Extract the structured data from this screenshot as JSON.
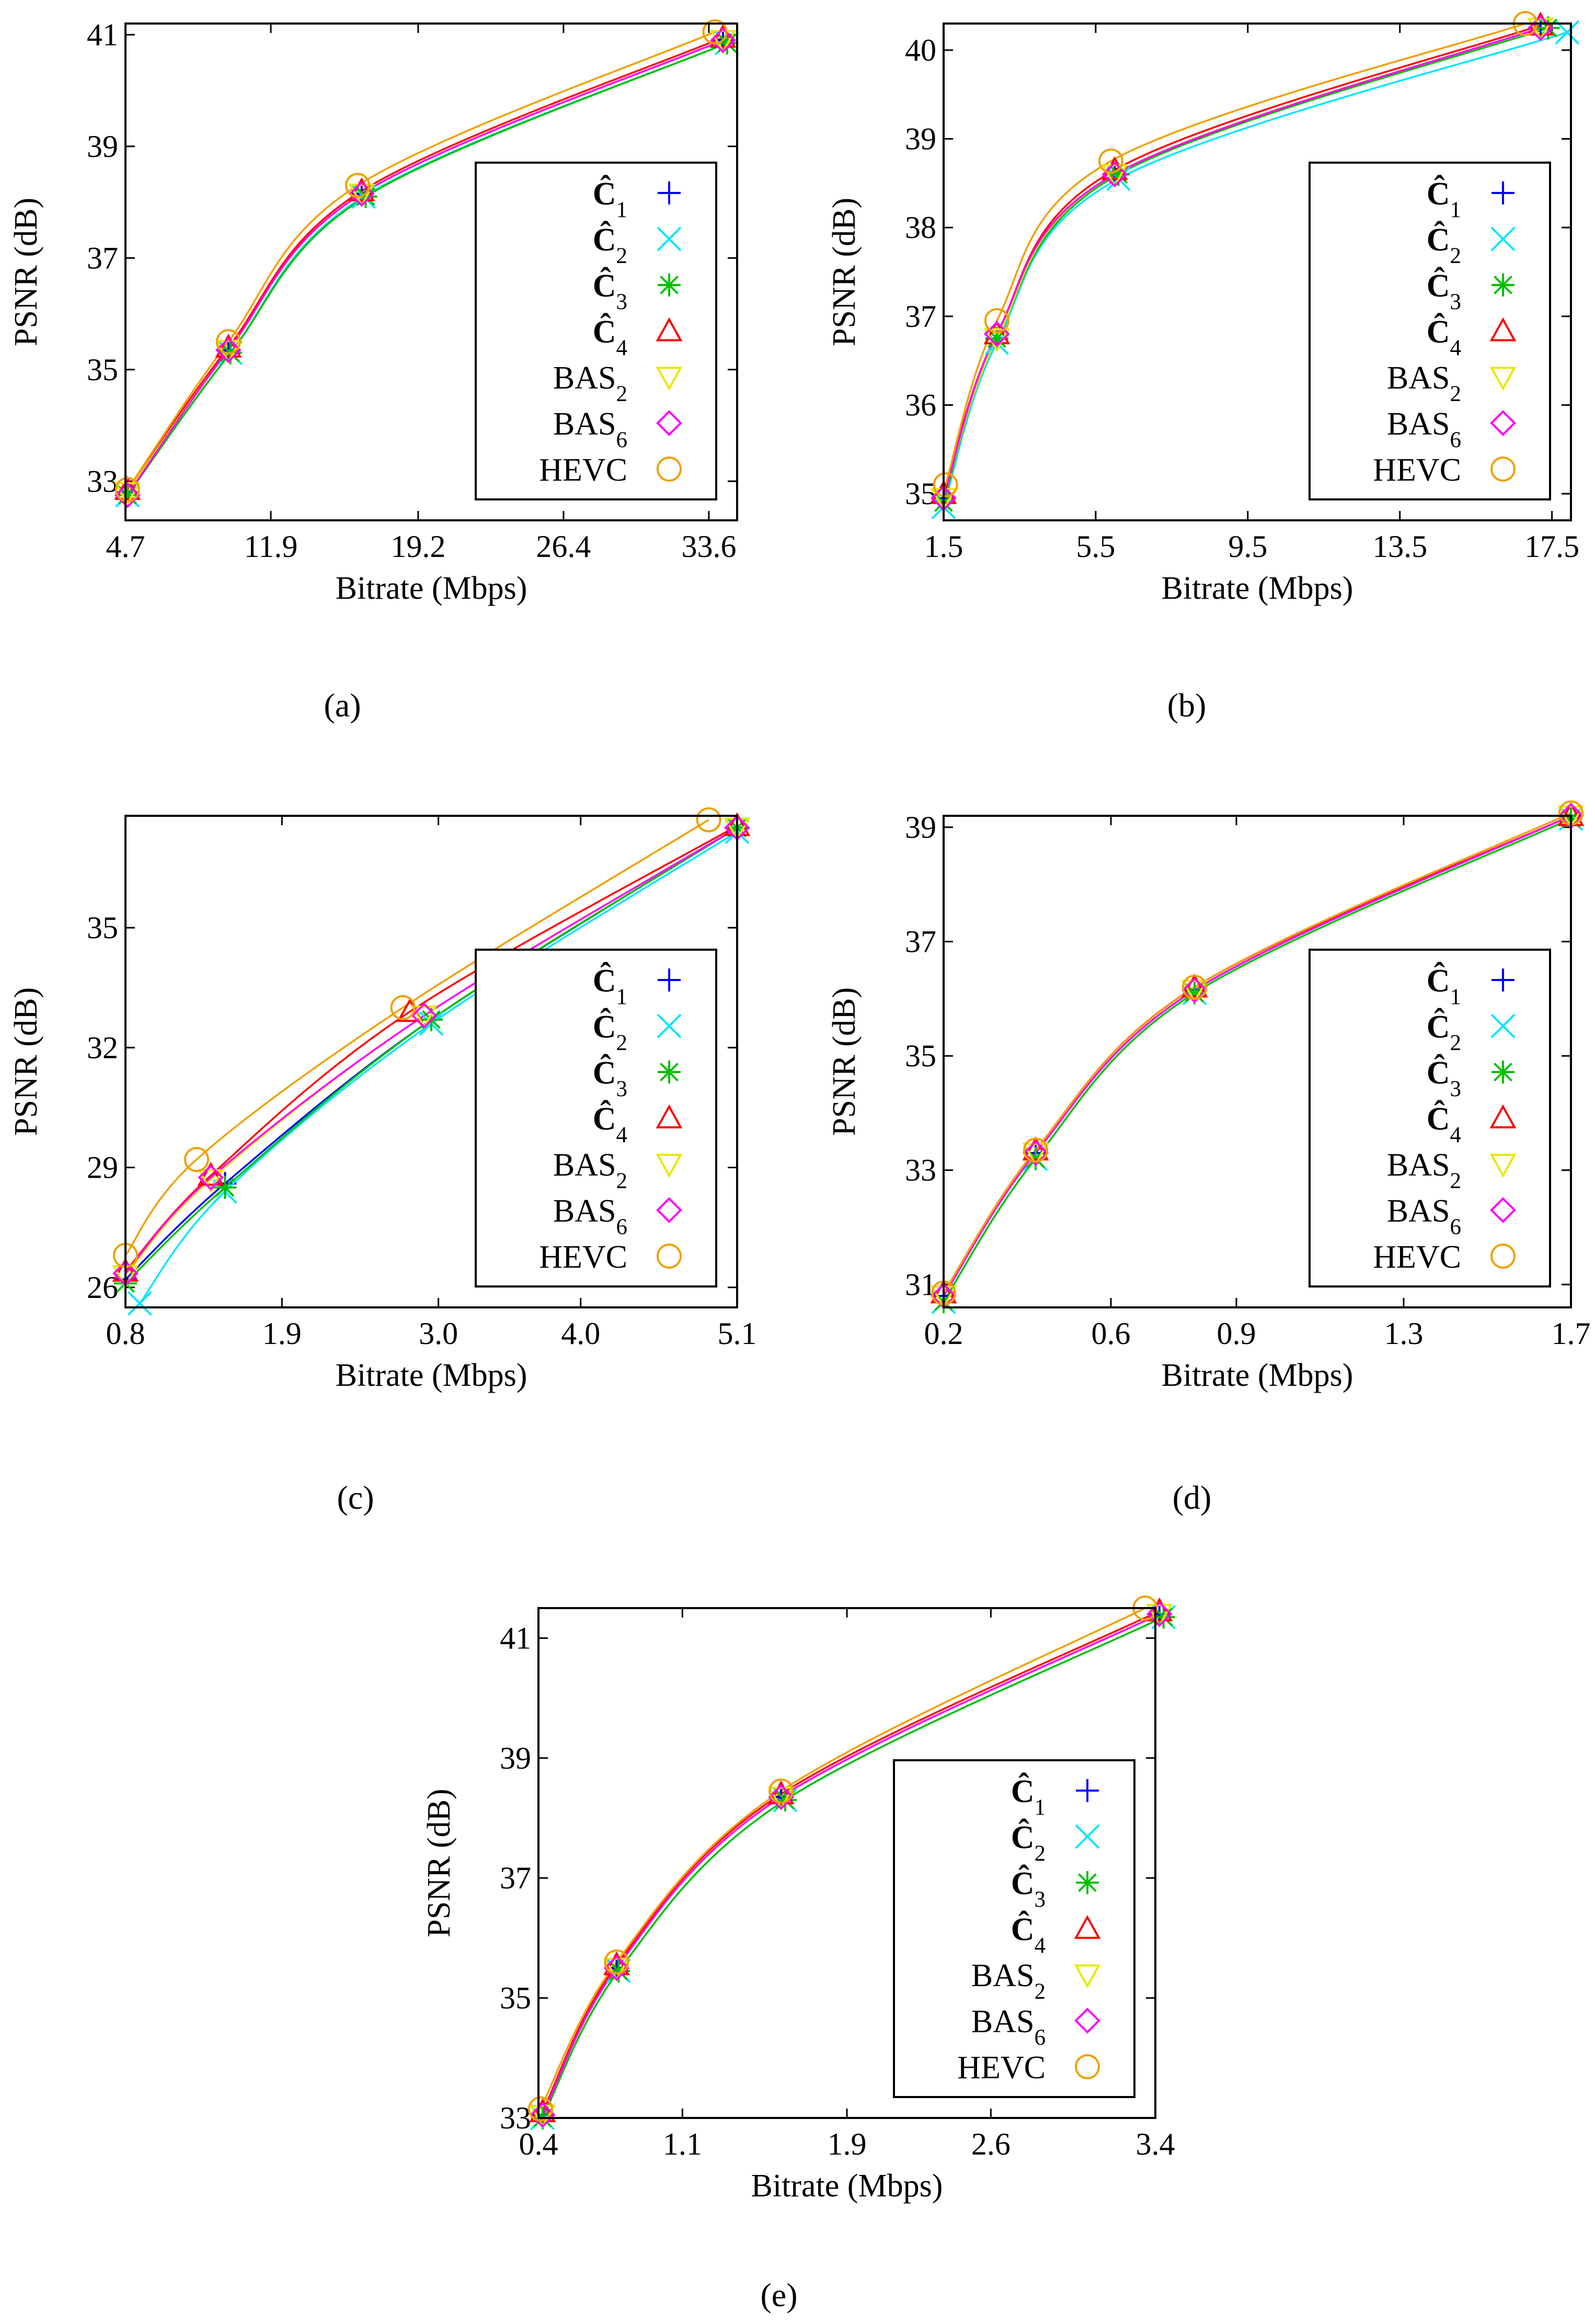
{
  "chart_data": [
    {
      "type": "line",
      "panel_label": "(a)",
      "xlabel": "Bitrate (Mbps)",
      "ylabel": "PSNR (dB)",
      "xlim": [
        4.7,
        35.0
      ],
      "ylim": [
        32.3,
        41.2
      ],
      "xticks": [
        4.7,
        11.9,
        19.2,
        26.4,
        33.6
      ],
      "yticks": [
        33,
        35,
        37,
        39,
        41
      ],
      "legend_position": "bottom-right",
      "series": [
        {
          "name": "Ĉ1",
          "marker": "plus",
          "color": "#0000ff",
          "x": [
            4.8,
            9.8,
            16.4,
            34.3
          ],
          "y": [
            32.8,
            35.35,
            38.15,
            40.9
          ]
        },
        {
          "name": "Ĉ2",
          "marker": "x",
          "color": "#00e5ff",
          "x": [
            4.8,
            9.9,
            16.5,
            34.5
          ],
          "y": [
            32.75,
            35.3,
            38.1,
            40.85
          ]
        },
        {
          "name": "Ĉ3",
          "marker": "star",
          "color": "#00c000",
          "x": [
            4.8,
            9.9,
            16.6,
            34.5
          ],
          "y": [
            32.75,
            35.3,
            38.1,
            40.85
          ]
        },
        {
          "name": "Ĉ4",
          "marker": "triangle-up",
          "color": "#ff0000",
          "x": [
            4.8,
            9.8,
            16.4,
            34.3
          ],
          "y": [
            32.85,
            35.4,
            38.2,
            40.95
          ]
        },
        {
          "name": "BAS2",
          "marker": "triangle-down",
          "color": "#e8e800",
          "x": [
            4.8,
            9.8,
            16.4,
            34.3
          ],
          "y": [
            32.8,
            35.35,
            38.15,
            40.9
          ]
        },
        {
          "name": "BAS6",
          "marker": "diamond",
          "color": "#ff00ff",
          "x": [
            4.8,
            9.8,
            16.4,
            34.3
          ],
          "y": [
            32.75,
            35.35,
            38.15,
            40.9
          ]
        },
        {
          "name": "HEVC",
          "marker": "circle",
          "color": "#f0a000",
          "x": [
            4.8,
            9.8,
            16.2,
            33.9
          ],
          "y": [
            32.85,
            35.5,
            38.3,
            41.05
          ]
        }
      ]
    },
    {
      "type": "line",
      "panel_label": "(b)",
      "xlabel": "Bitrate (Mbps)",
      "ylabel": "PSNR (dB)",
      "xlim": [
        1.5,
        18.0
      ],
      "ylim": [
        34.7,
        40.3
      ],
      "xticks": [
        1.5,
        5.5,
        9.5,
        13.5,
        17.5
      ],
      "yticks": [
        35,
        36,
        37,
        38,
        39,
        40
      ],
      "legend_position": "bottom-right",
      "series": [
        {
          "name": "Ĉ1",
          "marker": "plus",
          "color": "#0000ff",
          "x": [
            1.5,
            2.9,
            6.0,
            17.2
          ],
          "y": [
            34.95,
            36.75,
            38.6,
            40.25
          ]
        },
        {
          "name": "Ĉ2",
          "marker": "x",
          "color": "#00e5ff",
          "x": [
            1.5,
            2.9,
            6.1,
            17.9
          ],
          "y": [
            34.85,
            36.7,
            38.55,
            40.2
          ]
        },
        {
          "name": "Ĉ3",
          "marker": "star",
          "color": "#00c000",
          "x": [
            1.5,
            2.9,
            6.1,
            17.4
          ],
          "y": [
            34.9,
            36.75,
            38.6,
            40.25
          ]
        },
        {
          "name": "Ĉ4",
          "marker": "triangle-up",
          "color": "#ff0000",
          "x": [
            1.5,
            2.9,
            6.0,
            17.2
          ],
          "y": [
            35.0,
            36.8,
            38.65,
            40.28
          ]
        },
        {
          "name": "BAS2",
          "marker": "triangle-down",
          "color": "#e8e800",
          "x": [
            1.5,
            2.9,
            6.0,
            17.2
          ],
          "y": [
            34.95,
            36.75,
            38.6,
            40.25
          ]
        },
        {
          "name": "BAS6",
          "marker": "diamond",
          "color": "#ff00ff",
          "x": [
            1.5,
            2.9,
            6.0,
            17.2
          ],
          "y": [
            34.95,
            36.8,
            38.6,
            40.25
          ]
        },
        {
          "name": "HEVC",
          "marker": "circle",
          "color": "#f0a000",
          "x": [
            1.55,
            2.9,
            5.9,
            16.8
          ],
          "y": [
            35.1,
            36.95,
            38.75,
            40.3
          ]
        }
      ]
    },
    {
      "type": "line",
      "panel_label": "(c)",
      "xlabel": "Bitrate (Mbps)",
      "ylabel": "PSNR (dB)",
      "xlim": [
        0.8,
        5.1
      ],
      "ylim": [
        25.5,
        37.8
      ],
      "xticks": [
        0.8,
        1.9,
        3.0,
        4.0,
        5.1
      ],
      "yticks": [
        26,
        29,
        32,
        35
      ],
      "legend_position": "bottom-right",
      "series": [
        {
          "name": "Ĉ1",
          "marker": "plus",
          "color": "#0000ff",
          "x": [
            0.8,
            1.5,
            2.95,
            5.1
          ],
          "y": [
            26.2,
            28.6,
            32.7,
            37.5
          ]
        },
        {
          "name": "Ĉ2",
          "marker": "x",
          "color": "#00e5ff",
          "x": [
            0.9,
            1.5,
            2.95,
            5.1
          ],
          "y": [
            25.6,
            28.4,
            32.6,
            37.4
          ]
        },
        {
          "name": "Ĉ3",
          "marker": "star",
          "color": "#00c000",
          "x": [
            0.8,
            1.5,
            2.95,
            5.1
          ],
          "y": [
            26.1,
            28.5,
            32.7,
            37.5
          ]
        },
        {
          "name": "Ĉ4",
          "marker": "triangle-up",
          "color": "#ff0000",
          "x": [
            0.8,
            1.4,
            2.8,
            5.1
          ],
          "y": [
            26.4,
            28.8,
            32.9,
            37.55
          ]
        },
        {
          "name": "BAS2",
          "marker": "triangle-down",
          "color": "#e8e800",
          "x": [
            0.8,
            1.4,
            2.9,
            5.1
          ],
          "y": [
            26.3,
            28.7,
            32.8,
            37.5
          ]
        },
        {
          "name": "BAS6",
          "marker": "diamond",
          "color": "#ff00ff",
          "x": [
            0.8,
            1.4,
            2.9,
            5.1
          ],
          "y": [
            26.35,
            28.75,
            32.8,
            37.5
          ]
        },
        {
          "name": "HEVC",
          "marker": "circle",
          "color": "#f0a000",
          "x": [
            0.8,
            1.3,
            2.75,
            4.9
          ],
          "y": [
            26.8,
            29.2,
            33.0,
            37.7
          ]
        }
      ]
    },
    {
      "type": "line",
      "panel_label": "(d)",
      "xlabel": "Bitrate (Mbps)",
      "ylabel": "PSNR (dB)",
      "xlim": [
        0.2,
        1.7
      ],
      "ylim": [
        30.6,
        39.2
      ],
      "xticks": [
        0.2,
        0.6,
        0.9,
        1.3,
        1.7
      ],
      "yticks": [
        31,
        33,
        35,
        37,
        39
      ],
      "legend_position": "bottom-right",
      "series": [
        {
          "name": "Ĉ1",
          "marker": "plus",
          "color": "#0000ff",
          "x": [
            0.2,
            0.42,
            0.8,
            1.7
          ],
          "y": [
            30.8,
            33.3,
            36.15,
            39.2
          ]
        },
        {
          "name": "Ĉ2",
          "marker": "x",
          "color": "#00e5ff",
          "x": [
            0.2,
            0.42,
            0.8,
            1.7
          ],
          "y": [
            30.7,
            33.2,
            36.1,
            39.15
          ]
        },
        {
          "name": "Ĉ3",
          "marker": "star",
          "color": "#00c000",
          "x": [
            0.2,
            0.42,
            0.8,
            1.7
          ],
          "y": [
            30.7,
            33.2,
            36.1,
            39.15
          ]
        },
        {
          "name": "Ĉ4",
          "marker": "triangle-up",
          "color": "#ff0000",
          "x": [
            0.2,
            0.42,
            0.8,
            1.7
          ],
          "y": [
            30.85,
            33.35,
            36.2,
            39.2
          ]
        },
        {
          "name": "BAS2",
          "marker": "triangle-down",
          "color": "#e8e800",
          "x": [
            0.2,
            0.42,
            0.8,
            1.7
          ],
          "y": [
            30.8,
            33.3,
            36.15,
            39.2
          ]
        },
        {
          "name": "BAS6",
          "marker": "diamond",
          "color": "#ff00ff",
          "x": [
            0.2,
            0.42,
            0.8,
            1.7
          ],
          "y": [
            30.8,
            33.3,
            36.15,
            39.2
          ]
        },
        {
          "name": "HEVC",
          "marker": "circle",
          "color": "#f0a000",
          "x": [
            0.2,
            0.42,
            0.8,
            1.7
          ],
          "y": [
            30.85,
            33.35,
            36.2,
            39.25
          ]
        }
      ]
    },
    {
      "type": "line",
      "panel_label": "(e)",
      "xlabel": "Bitrate (Mbps)",
      "ylabel": "PSNR (dB)",
      "xlim": [
        0.4,
        3.4
      ],
      "ylim": [
        33.0,
        41.5
      ],
      "xticks": [
        0.4,
        1.1,
        1.9,
        2.6,
        3.4
      ],
      "yticks": [
        33,
        35,
        37,
        39,
        41
      ],
      "legend_position": "bottom-right",
      "series": [
        {
          "name": "Ĉ1",
          "marker": "plus",
          "color": "#0000ff",
          "x": [
            0.42,
            0.78,
            1.58,
            3.42
          ],
          "y": [
            33.05,
            35.5,
            38.35,
            41.4
          ]
        },
        {
          "name": "Ĉ2",
          "marker": "x",
          "color": "#00e5ff",
          "x": [
            0.42,
            0.79,
            1.6,
            3.44
          ],
          "y": [
            33.0,
            35.45,
            38.3,
            41.35
          ]
        },
        {
          "name": "Ĉ3",
          "marker": "star",
          "color": "#00c000",
          "x": [
            0.42,
            0.79,
            1.6,
            3.44
          ],
          "y": [
            33.0,
            35.45,
            38.3,
            41.35
          ]
        },
        {
          "name": "Ĉ4",
          "marker": "triangle-up",
          "color": "#ff0000",
          "x": [
            0.42,
            0.78,
            1.58,
            3.42
          ],
          "y": [
            33.1,
            35.55,
            38.4,
            41.45
          ]
        },
        {
          "name": "BAS2",
          "marker": "triangle-down",
          "color": "#e8e800",
          "x": [
            0.42,
            0.78,
            1.58,
            3.42
          ],
          "y": [
            33.05,
            35.5,
            38.35,
            41.4
          ]
        },
        {
          "name": "BAS6",
          "marker": "diamond",
          "color": "#ff00ff",
          "x": [
            0.42,
            0.78,
            1.58,
            3.42
          ],
          "y": [
            33.05,
            35.5,
            38.35,
            41.4
          ]
        },
        {
          "name": "HEVC",
          "marker": "circle",
          "color": "#f0a000",
          "x": [
            0.41,
            0.78,
            1.58,
            3.35
          ],
          "y": [
            33.15,
            35.6,
            38.45,
            41.5
          ]
        }
      ]
    }
  ]
}
